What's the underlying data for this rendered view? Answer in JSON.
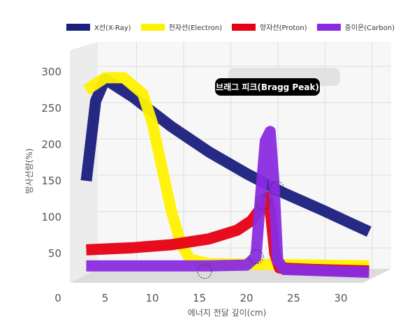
{
  "chart_data": {
    "type": "line",
    "title": "",
    "xlabel": "에너지 전달 깊이(cm)",
    "ylabel": "방사선량(%)",
    "xlim": [
      0,
      33
    ],
    "ylim": [
      0,
      300
    ],
    "xticks": [
      "0",
      "5",
      "10",
      "15",
      "20",
      "25",
      "30"
    ],
    "yticks": [
      "50",
      "100",
      "150",
      "200",
      "250",
      "300"
    ],
    "legend_position": "top",
    "annotation": "브래그 피크(Bragg Peak)",
    "series": [
      {
        "name": "X선(X-Ray)",
        "color": "#1b1f7e",
        "points": [
          [
            3,
            150
          ],
          [
            4,
            260
          ],
          [
            5,
            290
          ],
          [
            8,
            265
          ],
          [
            12,
            225
          ],
          [
            16,
            190
          ],
          [
            20,
            160
          ],
          [
            24,
            133
          ],
          [
            28,
            110
          ],
          [
            33,
            80
          ]
        ]
      },
      {
        "name": "전자선(Electron)",
        "color": "#fff200",
        "points": [
          [
            3,
            275
          ],
          [
            5,
            292
          ],
          [
            7,
            292
          ],
          [
            9,
            270
          ],
          [
            10,
            230
          ],
          [
            11,
            170
          ],
          [
            12,
            110
          ],
          [
            13,
            65
          ],
          [
            14,
            42
          ],
          [
            16,
            36
          ],
          [
            22,
            35
          ],
          [
            33,
            33
          ]
        ]
      },
      {
        "name": "양자선(Proton)",
        "color": "#e60012",
        "points": [
          [
            3,
            55
          ],
          [
            8,
            58
          ],
          [
            12,
            62
          ],
          [
            16,
            70
          ],
          [
            19,
            82
          ],
          [
            20.5,
            95
          ],
          [
            21.5,
            112
          ],
          [
            22.2,
            128
          ],
          [
            22.6,
            100
          ],
          [
            23,
            50
          ],
          [
            23.5,
            30
          ],
          [
            27,
            28
          ],
          [
            33,
            26
          ]
        ]
      },
      {
        "name": "중이온(Carbon)",
        "color": "#8a2be2",
        "points": [
          [
            3,
            33
          ],
          [
            10,
            33
          ],
          [
            16,
            33
          ],
          [
            20,
            34
          ],
          [
            21,
            45
          ],
          [
            21.5,
            130
          ],
          [
            22,
            205
          ],
          [
            22.5,
            218
          ],
          [
            22.9,
            150
          ],
          [
            23.3,
            40
          ],
          [
            24,
            28
          ],
          [
            33,
            24
          ]
        ]
      }
    ]
  }
}
